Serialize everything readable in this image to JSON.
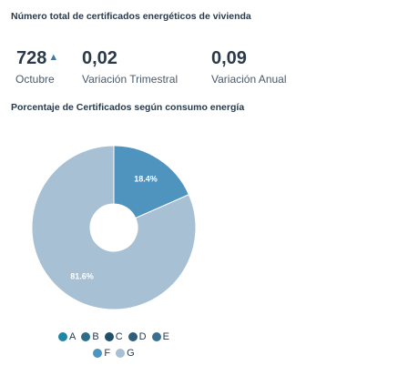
{
  "kpis": {
    "title": "Número total de certificados energéticos de vivienda",
    "month_value": "728",
    "month_arrow": "▲",
    "month_label": "Octubre",
    "quarterly_value": "0,02",
    "quarterly_label": "Variación Trimestral",
    "annual_value": "0,09",
    "annual_label": "Variación Anual"
  },
  "chart_data": {
    "type": "pie",
    "title": "Porcentaje de Certificados según consumo energía",
    "donut": true,
    "categories": [
      "A",
      "B",
      "C",
      "D",
      "E",
      "F",
      "G"
    ],
    "values": [
      0,
      0,
      0,
      0,
      0,
      18.4,
      81.6
    ],
    "data_labels": [
      "",
      "",
      "",
      "",
      "",
      "18.4%",
      "81.6%"
    ],
    "colors": [
      "#1f86a8",
      "#2a6d8c",
      "#1f4f69",
      "#2f5c78",
      "#3a6f8f",
      "#4f93bf",
      "#a7c0d3"
    ],
    "legend_position": "bottom"
  }
}
